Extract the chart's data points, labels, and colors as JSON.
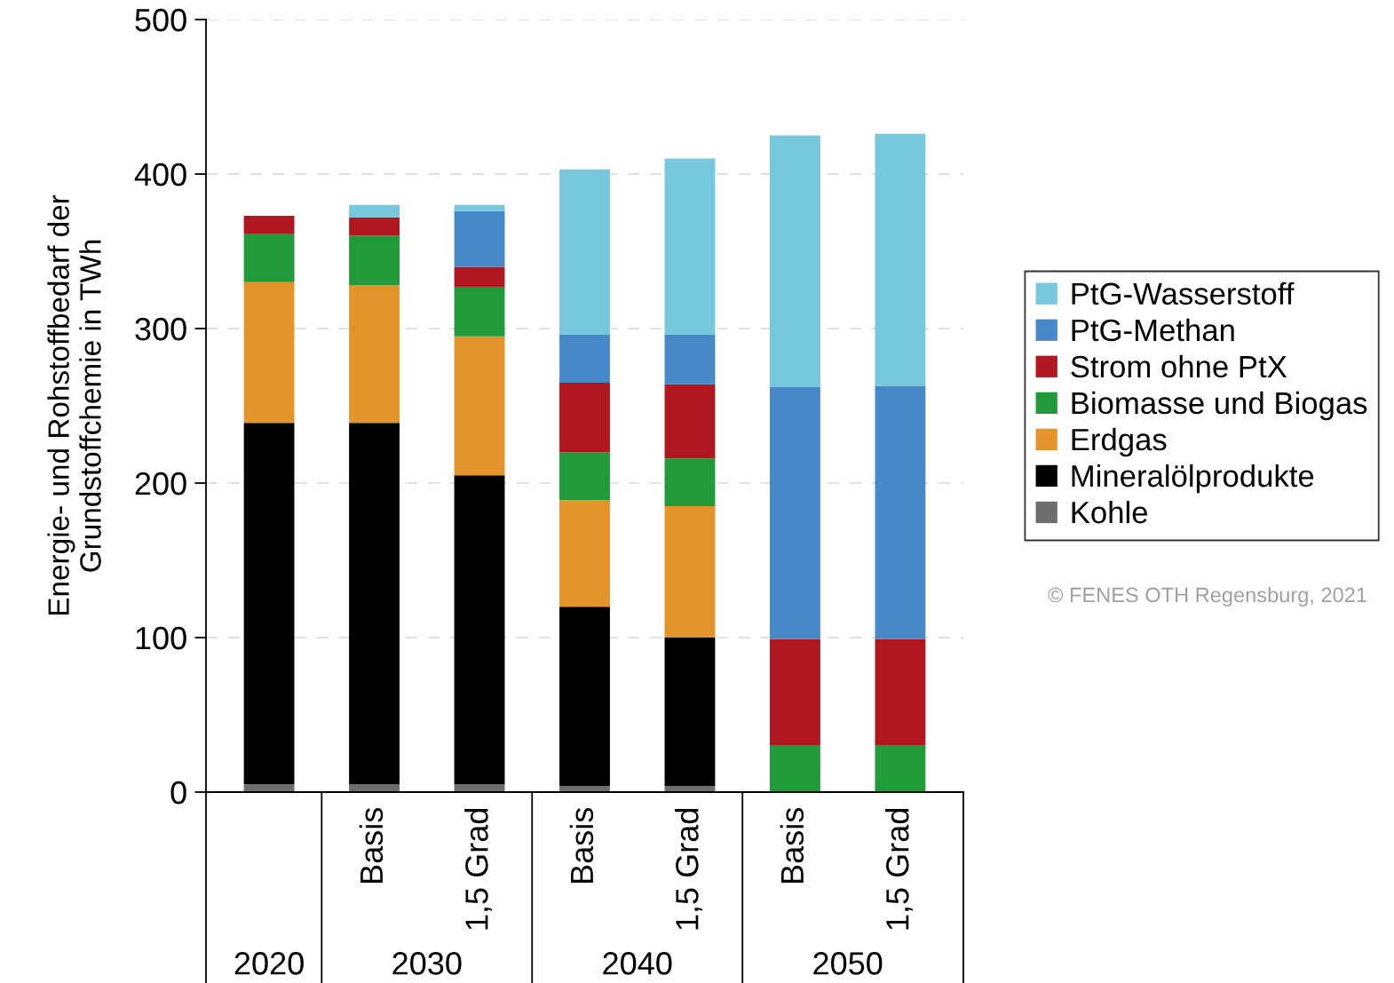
{
  "chart_data": {
    "type": "bar",
    "stacked": true,
    "ylabel": "Energie- und Rohstoffbedarf der\nGrundstoffchemie in TWh",
    "categories": [
      null,
      "Basis",
      "1,5 Grad",
      "Basis",
      "1,5 Grad",
      "Basis",
      "1,5 Grad"
    ],
    "series": [
      {
        "name": "Kohle",
        "color": "#6d6d6d",
        "values": [
          5,
          5,
          5,
          4,
          4,
          null,
          null
        ]
      },
      {
        "name": "Mineralölprodukte",
        "color": "#000000",
        "values": [
          234,
          234,
          200,
          116,
          96,
          null,
          null
        ]
      },
      {
        "name": "Erdgas",
        "color": "#e3952b",
        "values": [
          91,
          89,
          90,
          69,
          85,
          null,
          null
        ]
      },
      {
        "name": "Biomasse und Biogas",
        "color": "#219a3a",
        "values": [
          31,
          32,
          32,
          31,
          31,
          30,
          30
        ]
      },
      {
        "name": "Strom ohne PtX",
        "color": "#b0171f",
        "values": [
          12,
          12,
          13,
          45,
          48,
          69,
          69
        ]
      },
      {
        "name": "PtG-Methan",
        "color": "#4688c8",
        "values": [
          null,
          null,
          36,
          31,
          32,
          163,
          164
        ]
      },
      {
        "name": "PtG-Wasserstoff",
        "color": "#77c8dc",
        "values": [
          null,
          8,
          4,
          107,
          114,
          163,
          163
        ]
      }
    ],
    "ylim": [
      0,
      500
    ],
    "yticks": [
      0,
      100,
      200,
      300,
      400,
      500
    ],
    "grid": "y",
    "legend": "right",
    "annotations": [
      "2020",
      "2030",
      "2040",
      "2050",
      "© FENES OTH Regensburg, 2021"
    ]
  }
}
